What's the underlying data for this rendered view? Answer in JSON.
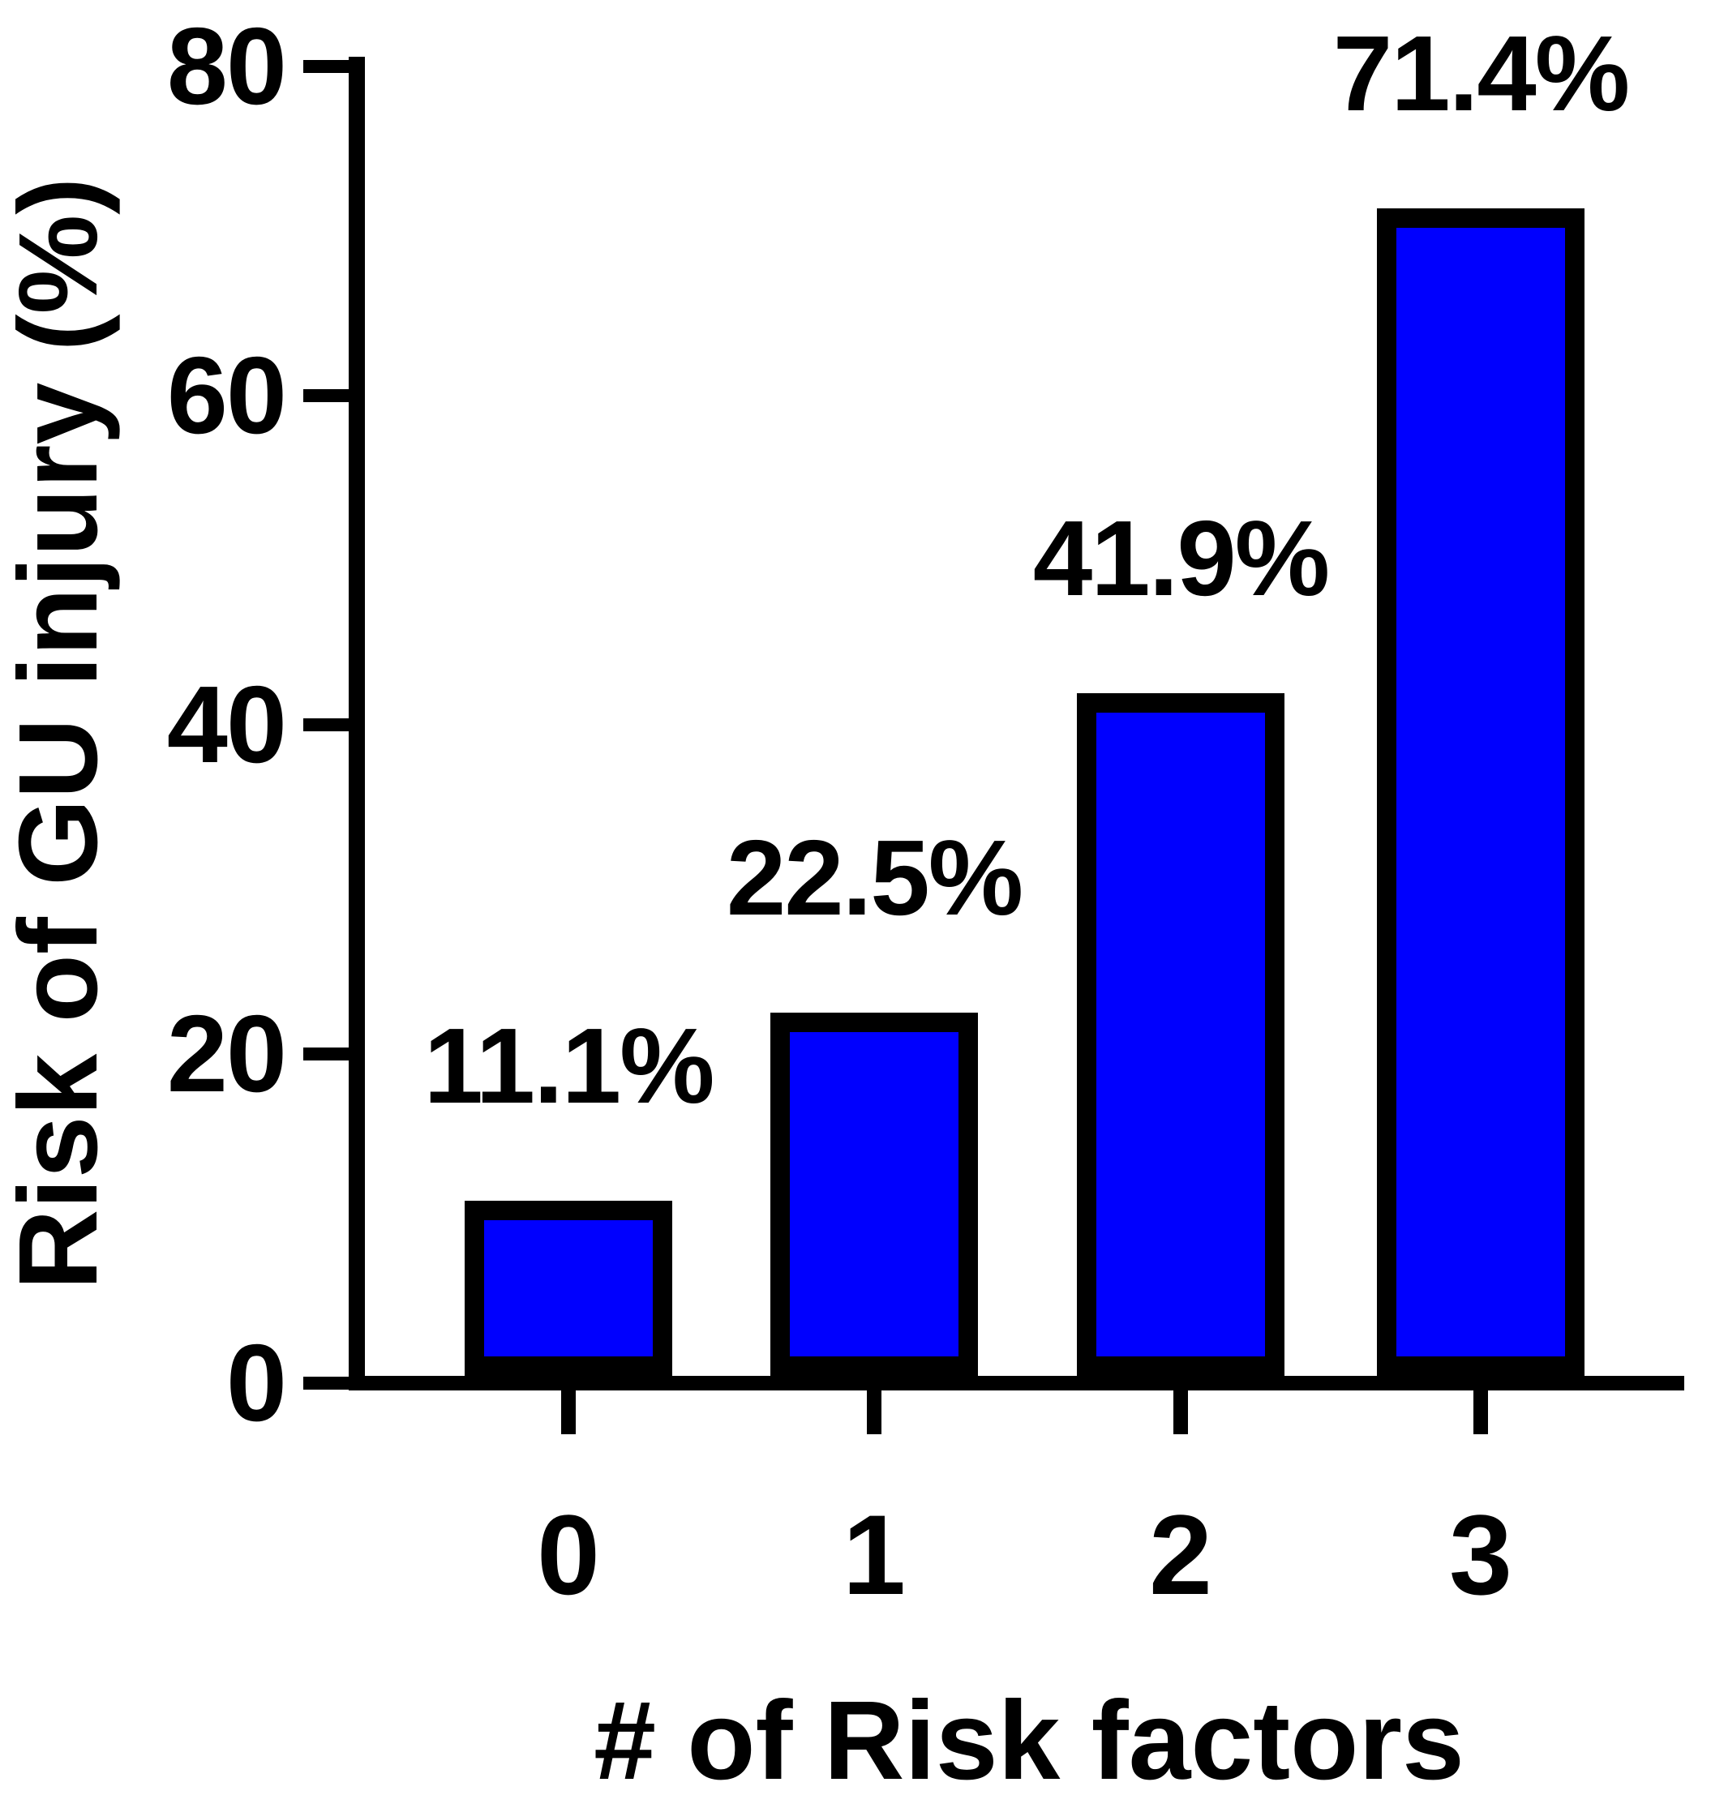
{
  "chart_data": {
    "type": "bar",
    "title": "",
    "xlabel": "# of Risk factors",
    "ylabel": "Risk of GU injury (%)",
    "categories": [
      "0",
      "1",
      "2",
      "3"
    ],
    "values": [
      11.1,
      22.5,
      41.9,
      71.4
    ],
    "bar_labels": [
      "11.1%",
      "22.5%",
      "41.9%",
      "71.4%"
    ],
    "ylim": [
      0,
      80
    ],
    "yticks": [
      0,
      20,
      40,
      60,
      80
    ],
    "ytick_labels": [
      "0",
      "20",
      "40",
      "60",
      "80"
    ],
    "grid": false,
    "legend_position": "none",
    "colors": {
      "bar_fill": "#0000fe",
      "bar_border": "#000000",
      "axis": "#000000",
      "text": "#000000",
      "background": "#ffffff"
    }
  }
}
